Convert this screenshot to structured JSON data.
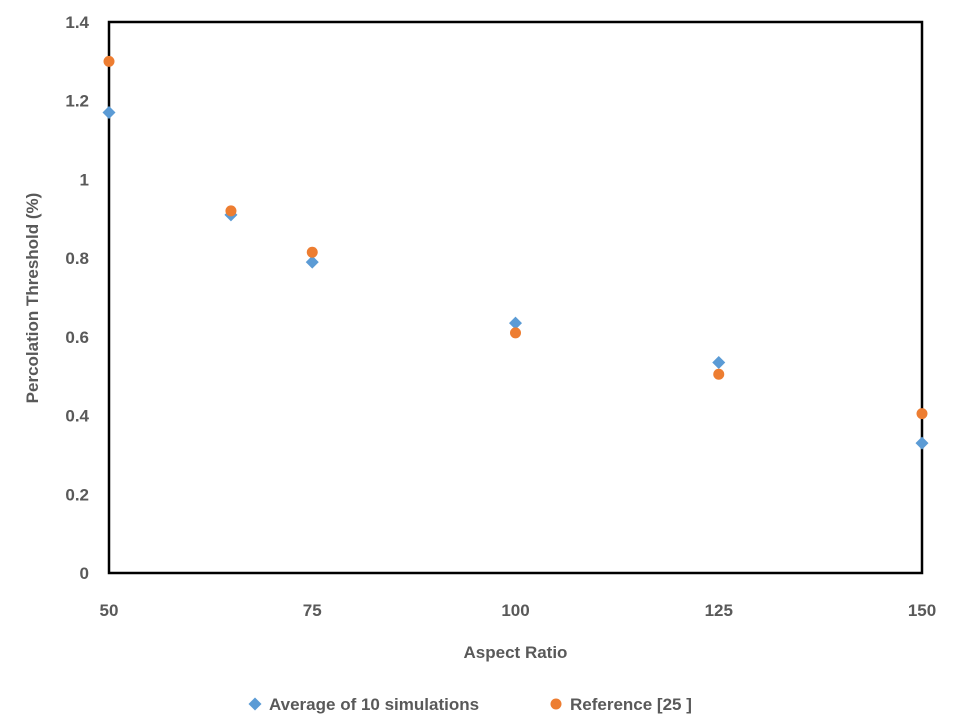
{
  "chart_data": {
    "type": "scatter",
    "title": "",
    "xlabel": "Aspect Ratio",
    "ylabel": "Percolation Threshold (%)",
    "xlim": [
      50,
      150
    ],
    "ylim": [
      0,
      1.4
    ],
    "xticks": [
      50,
      75,
      100,
      125,
      150
    ],
    "yticks": [
      0,
      0.2,
      0.4,
      0.6,
      0.8,
      1,
      1.2,
      1.4
    ],
    "xtick_labels": [
      "50",
      "75",
      "100",
      "125",
      "150"
    ],
    "ytick_labels": [
      "0",
      "0.2",
      "0.4",
      "0.6",
      "0.8",
      "1",
      "1.2",
      "1.4"
    ],
    "grid": false,
    "legend_position": "bottom",
    "series": [
      {
        "name": "Average of 10 simulations",
        "marker": "diamond",
        "color": "#5B9BD5",
        "points": [
          {
            "x": 50,
            "y": 1.17
          },
          {
            "x": 65,
            "y": 0.91
          },
          {
            "x": 75,
            "y": 0.79
          },
          {
            "x": 100,
            "y": 0.635
          },
          {
            "x": 125,
            "y": 0.535
          },
          {
            "x": 150,
            "y": 0.33
          }
        ]
      },
      {
        "name": "Reference [25 ]",
        "marker": "circle",
        "color": "#ED7D31",
        "points": [
          {
            "x": 50,
            "y": 1.3
          },
          {
            "x": 65,
            "y": 0.92
          },
          {
            "x": 75,
            "y": 0.815
          },
          {
            "x": 100,
            "y": 0.61
          },
          {
            "x": 125,
            "y": 0.505
          },
          {
            "x": 150,
            "y": 0.405
          }
        ]
      }
    ]
  }
}
